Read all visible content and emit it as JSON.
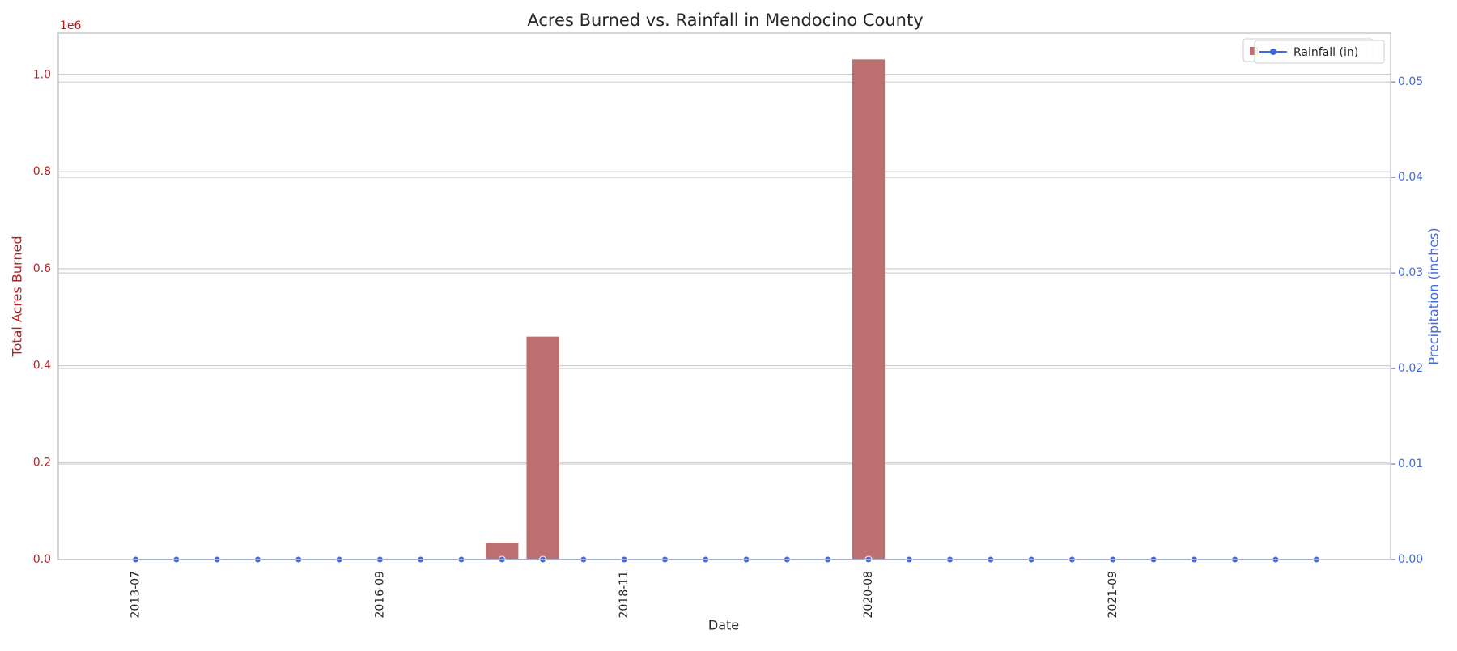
{
  "chart_data": {
    "type": "bar",
    "title": "Acres Burned vs. Rainfall in Mendocino County",
    "x_label": "Date",
    "y_label": "Total Acres Burned",
    "y2_label": "Precipitation (inches)",
    "y_offset_label": "1e6",
    "categories": [
      "2013-07",
      null,
      null,
      null,
      null,
      null,
      "2016-09",
      null,
      null,
      null,
      null,
      null,
      "2018-11",
      null,
      null,
      null,
      null,
      null,
      "2020-08",
      null,
      null,
      null,
      null,
      null,
      "2021-09",
      null,
      null,
      null,
      null,
      null
    ],
    "series": [
      {
        "type": "bar",
        "color": "#bc6f6f",
        "values": [
          0,
          0,
          0,
          0,
          0,
          0,
          0,
          0,
          0,
          35000,
          460000,
          0,
          0,
          0,
          0,
          0,
          0,
          0,
          1032000,
          0,
          0,
          0,
          0,
          0,
          0,
          0,
          0,
          0,
          0,
          0
        ]
      },
      {
        "type": "line",
        "name": "Rainfall (in)",
        "color": "#4169e1",
        "axis": "y2",
        "values": [
          0,
          0,
          0,
          0,
          0,
          0,
          0,
          0,
          0,
          0,
          0,
          0,
          0,
          0,
          0,
          0,
          0,
          0,
          0,
          0,
          0,
          0,
          0,
          0,
          0,
          0,
          0,
          0,
          0,
          0
        ]
      }
    ],
    "ylim": [
      0,
      1086000
    ],
    "yticks": [
      {
        "value": 0,
        "label": "0.0"
      },
      {
        "value": 200000,
        "label": "0.2"
      },
      {
        "value": 400000,
        "label": "0.4"
      },
      {
        "value": 600000,
        "label": "0.6"
      },
      {
        "value": 800000,
        "label": "0.8"
      },
      {
        "value": 1000000,
        "label": "1.0"
      }
    ],
    "y2lim": [
      0,
      0.0551
    ],
    "y2ticks": [
      {
        "value": 0,
        "label": "0.00"
      },
      {
        "value": 0.01,
        "label": "0.01"
      },
      {
        "value": 0.02,
        "label": "0.02"
      },
      {
        "value": 0.03,
        "label": "0.03"
      },
      {
        "value": 0.04,
        "label": "0.04"
      },
      {
        "value": 0.05,
        "label": "0.05"
      }
    ],
    "y_color": "#b22222",
    "y2_color": "#4169e1",
    "grid": true,
    "legend": "upper right"
  }
}
